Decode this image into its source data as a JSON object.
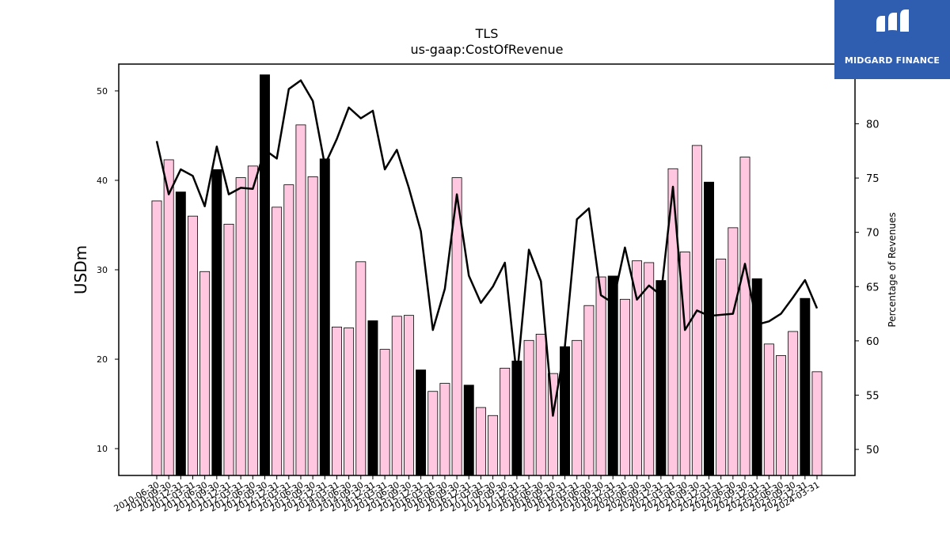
{
  "logo": {
    "text": "MIDGARD FINANCE"
  },
  "chart_data": {
    "type": "bar",
    "title": "TLS",
    "subtitle": "us-gaap:CostOfRevenue",
    "ylabel": "USDm",
    "y2label": "Percentage of Revenues",
    "ylim": [
      7,
      53
    ],
    "y2lim": [
      47.6,
      85.5
    ],
    "yticks": [
      10,
      20,
      30,
      40,
      50
    ],
    "y2ticks": [
      50,
      55,
      60,
      65,
      70,
      75,
      80
    ],
    "grid": false,
    "colors": {
      "bar_default": "#ffc8e0",
      "bar_highlight": "#000000",
      "line": "#000000"
    },
    "categories": [
      "2010-06-30",
      "2010-09-30",
      "2010-12-31",
      "2011-03-31",
      "2011-06-30",
      "2011-09-30",
      "2011-12-31",
      "2012-03-31",
      "2012-06-30",
      "2012-09-30",
      "2012-12-31",
      "2013-03-31",
      "2013-06-30",
      "2013-09-30",
      "2013-12-31",
      "2014-03-31",
      "2014-06-30",
      "2014-09-30",
      "2014-12-31",
      "2015-03-31",
      "2015-06-30",
      "2015-09-30",
      "2015-12-31",
      "2016-03-31",
      "2016-06-30",
      "2016-09-30",
      "2016-12-31",
      "2017-03-31",
      "2017-06-30",
      "2017-09-30",
      "2017-12-31",
      "2018-03-31",
      "2018-06-30",
      "2018-09-30",
      "2018-12-31",
      "2019-03-31",
      "2019-06-30",
      "2019-09-30",
      "2019-12-31",
      "2020-03-31",
      "2020-06-30",
      "2020-09-30",
      "2020-12-31",
      "2021-03-31",
      "2021-06-30",
      "2021-09-30",
      "2021-12-31",
      "2022-03-31",
      "2022-06-30",
      "2022-09-30",
      "2022-12-31",
      "2023-03-31",
      "2023-06-30",
      "2023-09-30",
      "2023-12-31",
      "2024-03-31"
    ],
    "xtick_labels": [
      "2010-06-30",
      "2010-09-30",
      "2010-12-31",
      "2011-03-31",
      "2011-06-30",
      "2011-09-30",
      "2011-12-31",
      "2012-03-31",
      "2012-06-30",
      "2012-09-30",
      "2012-12-31",
      "2013-03-31",
      "2013-06-30",
      "2013-09-30",
      "2013-12-31",
      "2014-03-31",
      "2014-06-30",
      "2014-09-30",
      "2014-12-31",
      "2015-03-31",
      "2015-06-30",
      "2015-09-30",
      "2015-12-31",
      "2016-03-31",
      "2016-06-30",
      "2016-09-30",
      "2016-12-31",
      "2017-03-31",
      "2017-06-30",
      "2017-09-30",
      "2017-12-31",
      "2018-03-31",
      "2018-06-30",
      "2018-09-30",
      "2018-12-31",
      "2019-03-31",
      "2019-06-30",
      "2019-09-30",
      "2019-12-31",
      "2020-03-31",
      "2020-06-30",
      "2020-09-30",
      "2020-12-31",
      "2021-03-31",
      "2021-06-30",
      "2021-09-30",
      "2021-12-31",
      "2022-03-31",
      "2022-06-30",
      "2022-09-30",
      "2022-12-31",
      "2023-03-31",
      "2023-06-30",
      "2023-09-30",
      "2023-12-31",
      "2024-03-31"
    ],
    "series": [
      {
        "type": "bar",
        "axis": "left",
        "values": [
          37.7,
          42.3,
          38.7,
          36.0,
          29.8,
          41.2,
          35.1,
          40.3,
          41.6,
          51.8,
          37.0,
          39.5,
          46.2,
          40.4,
          42.4,
          23.6,
          23.5,
          30.9,
          24.3,
          21.1,
          24.8,
          24.9,
          18.8,
          16.4,
          17.3,
          40.3,
          17.1,
          14.6,
          13.7,
          19.0,
          19.8,
          22.1,
          22.8,
          18.4,
          21.4,
          22.1,
          26.0,
          29.2,
          29.3,
          26.7,
          31.0,
          30.8,
          28.8,
          41.3,
          32.0,
          43.9,
          39.8,
          31.2,
          34.7,
          42.6,
          29.0,
          21.7,
          20.4,
          23.1,
          26.8,
          18.6
        ],
        "highlight": [
          false,
          false,
          true,
          false,
          false,
          true,
          false,
          false,
          false,
          true,
          false,
          false,
          false,
          false,
          true,
          false,
          false,
          false,
          true,
          false,
          false,
          false,
          true,
          false,
          false,
          false,
          true,
          false,
          false,
          false,
          true,
          false,
          false,
          false,
          true,
          false,
          false,
          false,
          true,
          false,
          false,
          false,
          true,
          false,
          false,
          false,
          true,
          false,
          false,
          false,
          true,
          false,
          false,
          false,
          true,
          false
        ]
      },
      {
        "type": "line",
        "axis": "right",
        "values": [
          78.4,
          73.5,
          75.8,
          75.2,
          72.4,
          77.9,
          73.5,
          74.1,
          74.0,
          77.6,
          76.8,
          83.2,
          84.0,
          82.1,
          76.2,
          78.6,
          81.5,
          80.5,
          81.2,
          75.8,
          77.6,
          74.1,
          70.1,
          61.0,
          64.8,
          73.5,
          66.0,
          63.5,
          65.0,
          67.2,
          56.6,
          68.4,
          65.5,
          53.1,
          59.5,
          71.2,
          72.2,
          64.2,
          63.5,
          68.6,
          63.8,
          65.1,
          64.2,
          74.2,
          61.0,
          62.8,
          62.3,
          62.4,
          62.5,
          67.1,
          61.5,
          61.8,
          62.5,
          64.0,
          65.6,
          63.0
        ]
      }
    ]
  }
}
